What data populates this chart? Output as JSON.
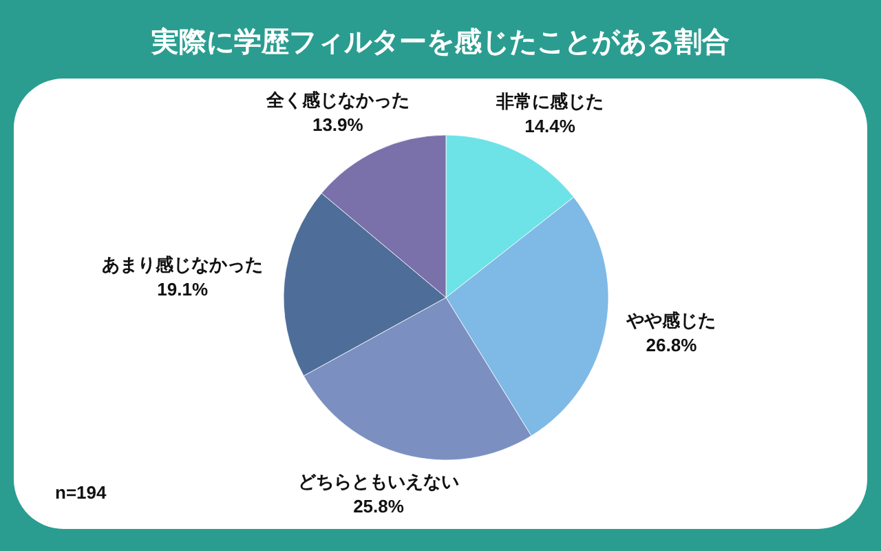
{
  "chart_data": {
    "type": "pie",
    "title": "実際に学歴フィルターを感じたことがある割合",
    "categories": [
      "非常に感じた",
      "やや感じた",
      "どちらともいえない",
      "あまり感じなかった",
      "全く感じなかった"
    ],
    "values": [
      14.4,
      26.8,
      25.8,
      19.1,
      13.9
    ],
    "value_labels": [
      "14.4%",
      "26.8%",
      "25.8%",
      "19.1%",
      "13.9%"
    ],
    "colors": [
      "#6de3e8",
      "#7fb9e6",
      "#7b90c1",
      "#4e6e99",
      "#7a71ab"
    ],
    "annotations": [
      "n=194"
    ],
    "legend": false
  }
}
